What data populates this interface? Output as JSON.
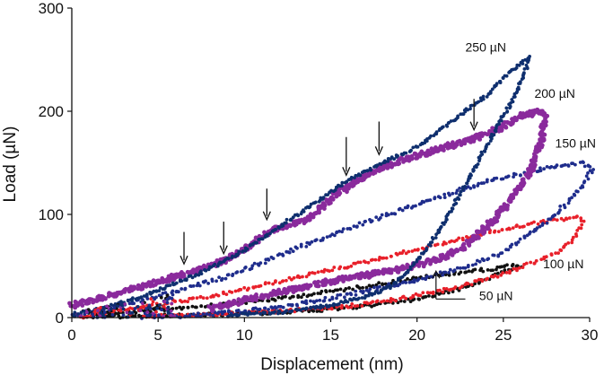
{
  "chart_data": {
    "type": "scatter",
    "xlabel": "Displacement (nm)",
    "ylabel": "Load (µN)",
    "xlim": [
      0,
      30
    ],
    "ylim": [
      0,
      300
    ],
    "x_ticks": [
      0,
      5,
      10,
      15,
      20,
      25,
      30
    ],
    "y_ticks": [
      0,
      100,
      200,
      300
    ],
    "x_tick_labels": [
      "0",
      "5",
      "10",
      "15",
      "20",
      "25",
      "30"
    ],
    "y_tick_labels": [
      "0",
      "100",
      "200",
      "300"
    ],
    "grid": false,
    "series": [
      {
        "name": "50 µN",
        "color": "#111111",
        "loading": [
          [
            0.5,
            1
          ],
          [
            4,
            6
          ],
          [
            8,
            12
          ],
          [
            12,
            18
          ],
          [
            16,
            28
          ],
          [
            20,
            38
          ],
          [
            23,
            45
          ],
          [
            24.5,
            47
          ],
          [
            25,
            50
          ],
          [
            26,
            50
          ]
        ],
        "unloading": [
          [
            26,
            50
          ],
          [
            25,
            44
          ],
          [
            23,
            30
          ],
          [
            20,
            18
          ],
          [
            16,
            9
          ],
          [
            12,
            5
          ],
          [
            8,
            3
          ],
          [
            4,
            1.5
          ],
          [
            1,
            0.5
          ]
        ]
      },
      {
        "name": "100 µN",
        "color": "#e8202a",
        "loading": [
          [
            0.5,
            1
          ],
          [
            4,
            10
          ],
          [
            8,
            20
          ],
          [
            12,
            35
          ],
          [
            16,
            50
          ],
          [
            20,
            66
          ],
          [
            24,
            82
          ],
          [
            27,
            92
          ],
          [
            29,
            97
          ],
          [
            29.5,
            97
          ]
        ],
        "unloading": [
          [
            29.5,
            97
          ],
          [
            29.6,
            92
          ],
          [
            29,
            75
          ],
          [
            28,
            62
          ],
          [
            27,
            55
          ],
          [
            25,
            42
          ],
          [
            22,
            28
          ],
          [
            19,
            18
          ],
          [
            16,
            11
          ],
          [
            12,
            6
          ],
          [
            8,
            3
          ],
          [
            4,
            1
          ]
        ]
      },
      {
        "name": "150 µN",
        "color": "#1f2d8c",
        "loading": [
          [
            0,
            2
          ],
          [
            3,
            12
          ],
          [
            6,
            25
          ],
          [
            9,
            40
          ],
          [
            12,
            60
          ],
          [
            15,
            80
          ],
          [
            18,
            98
          ],
          [
            21,
            115
          ],
          [
            24,
            132
          ],
          [
            27,
            143
          ],
          [
            29.5,
            150
          ]
        ],
        "unloading": [
          [
            29.5,
            150
          ],
          [
            30.2,
            145
          ],
          [
            29.5,
            125
          ],
          [
            28,
            100
          ],
          [
            26.5,
            80
          ],
          [
            25,
            63
          ],
          [
            22,
            45
          ],
          [
            19,
            33
          ],
          [
            16,
            22
          ],
          [
            13,
            13
          ],
          [
            10,
            6
          ],
          [
            7,
            2
          ],
          [
            4,
            0.5
          ]
        ]
      },
      {
        "name": "200 µN",
        "color": "#8a2a9c",
        "loading": [
          [
            0,
            12
          ],
          [
            3,
            25
          ],
          [
            6,
            40
          ],
          [
            7.5,
            47
          ],
          [
            9,
            57
          ],
          [
            10.5,
            72
          ],
          [
            12,
            88
          ],
          [
            13.5,
            93
          ],
          [
            15,
            115
          ],
          [
            17,
            138
          ],
          [
            19,
            152
          ],
          [
            21,
            162
          ],
          [
            23,
            172
          ],
          [
            24,
            178
          ],
          [
            25,
            185
          ],
          [
            26,
            195
          ],
          [
            27,
            200
          ]
        ],
        "unloading": [
          [
            27,
            200
          ],
          [
            27.4,
            195
          ],
          [
            27.2,
            170
          ],
          [
            26.5,
            140
          ],
          [
            25.5,
            115
          ],
          [
            24.5,
            95
          ],
          [
            23.5,
            80
          ],
          [
            22.5,
            66
          ],
          [
            21,
            55
          ],
          [
            19,
            47
          ],
          [
            16,
            38
          ],
          [
            13,
            28
          ],
          [
            10,
            17
          ],
          [
            8,
            8
          ]
        ]
      },
      {
        "name": "250 µN",
        "color": "#0f2f6e",
        "loading": [
          [
            1,
            5
          ],
          [
            4,
            20
          ],
          [
            7,
            40
          ],
          [
            9.5,
            60
          ],
          [
            12,
            88
          ],
          [
            14,
            110
          ],
          [
            16,
            133
          ],
          [
            18,
            150
          ],
          [
            20,
            165
          ],
          [
            22,
            190
          ],
          [
            24,
            215
          ],
          [
            25.5,
            240
          ],
          [
            26.5,
            252
          ]
        ],
        "unloading": [
          [
            26.5,
            252
          ],
          [
            26.3,
            240
          ],
          [
            25.5,
            210
          ],
          [
            24.5,
            180
          ],
          [
            23.5,
            150
          ],
          [
            22.5,
            120
          ],
          [
            21.5,
            90
          ],
          [
            20.5,
            65
          ],
          [
            19.5,
            45
          ],
          [
            18.5,
            30
          ],
          [
            17,
            20
          ],
          [
            15,
            12
          ],
          [
            12,
            5
          ],
          [
            9,
            2
          ]
        ]
      }
    ],
    "annotations": [
      {
        "label": "250 µN",
        "x": 22.8,
        "y": 258
      },
      {
        "label": "200 µN",
        "x": 26.8,
        "y": 213
      },
      {
        "label": "150 µN",
        "x": 28,
        "y": 165
      },
      {
        "label": "100 µN",
        "x": 27.3,
        "y": 48
      },
      {
        "label": "50 µN",
        "x": 23.6,
        "y": 17
      }
    ],
    "arrow_positions": [
      {
        "x": 6.5,
        "y_from": 83,
        "y_to": 52
      },
      {
        "x": 8.8,
        "y_from": 93,
        "y_to": 62
      },
      {
        "x": 11.3,
        "y_from": 125,
        "y_to": 95
      },
      {
        "x": 15.9,
        "y_from": 175,
        "y_to": 138
      },
      {
        "x": 17.8,
        "y_from": 190,
        "y_to": 158
      },
      {
        "x": 23.3,
        "y_from": 212,
        "y_to": 182
      }
    ],
    "pointer_50": {
      "x": 21.1,
      "y_from": 18,
      "y_to": 45,
      "x_end": 22.8
    }
  }
}
